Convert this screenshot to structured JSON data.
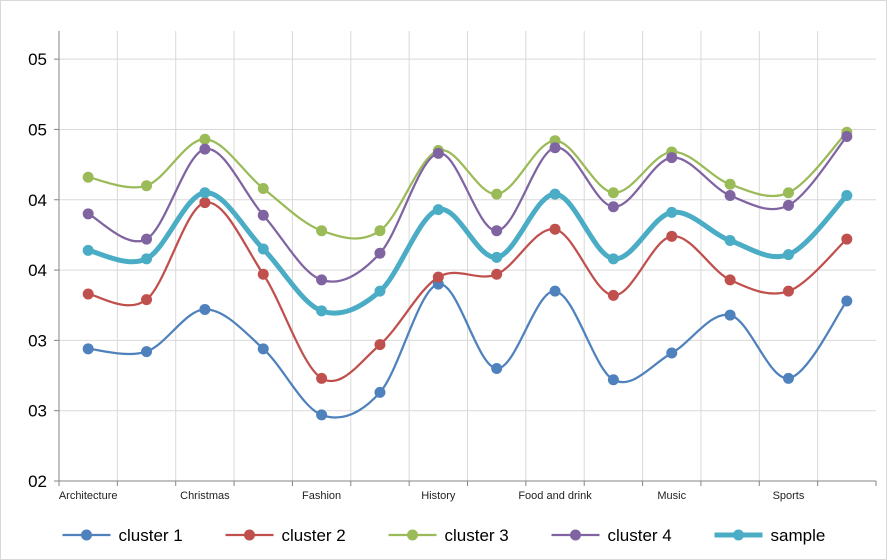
{
  "chart_data": {
    "type": "line",
    "smooth": true,
    "x": [
      "Architecture",
      "",
      "Christmas",
      "",
      "Fashion",
      "",
      "History",
      "",
      "Food and drink",
      "",
      "Music",
      "",
      "Sports",
      ""
    ],
    "ylim": [
      2,
      5.2
    ],
    "y_tick_values": [
      2,
      2.5,
      3,
      3.5,
      4,
      4.5,
      5
    ],
    "y_tick_labels": [
      "02",
      "03",
      "03",
      "04",
      "04",
      "05",
      "05"
    ],
    "grid": {
      "horizontal": true,
      "vertical": true
    },
    "legend_position": "bottom",
    "series": [
      {
        "name": "cluster 1",
        "color": "#4f81bd",
        "values": [
          2.94,
          2.92,
          3.22,
          2.94,
          2.47,
          2.63,
          3.4,
          2.8,
          3.35,
          2.72,
          2.91,
          3.18,
          2.73,
          3.28
        ]
      },
      {
        "name": "cluster 2",
        "color": "#c0504d",
        "values": [
          3.33,
          3.29,
          3.98,
          3.47,
          2.73,
          2.97,
          3.45,
          3.47,
          3.79,
          3.32,
          3.74,
          3.43,
          3.35,
          3.72
        ]
      },
      {
        "name": "cluster 3",
        "color": "#9bbb59",
        "values": [
          4.16,
          4.1,
          4.43,
          4.08,
          3.78,
          3.78,
          4.35,
          4.04,
          4.42,
          4.05,
          4.34,
          4.11,
          4.05,
          4.48
        ]
      },
      {
        "name": "cluster 4",
        "color": "#8064a2",
        "values": [
          3.9,
          3.72,
          4.36,
          3.89,
          3.43,
          3.62,
          4.33,
          3.78,
          4.37,
          3.95,
          4.3,
          4.03,
          3.96,
          4.45
        ]
      },
      {
        "name": "sample",
        "color": "#4bacc6",
        "thick": true,
        "values": [
          3.64,
          3.58,
          4.05,
          3.65,
          3.21,
          3.35,
          3.93,
          3.59,
          4.04,
          3.58,
          3.91,
          3.71,
          3.61,
          4.03
        ]
      }
    ]
  }
}
